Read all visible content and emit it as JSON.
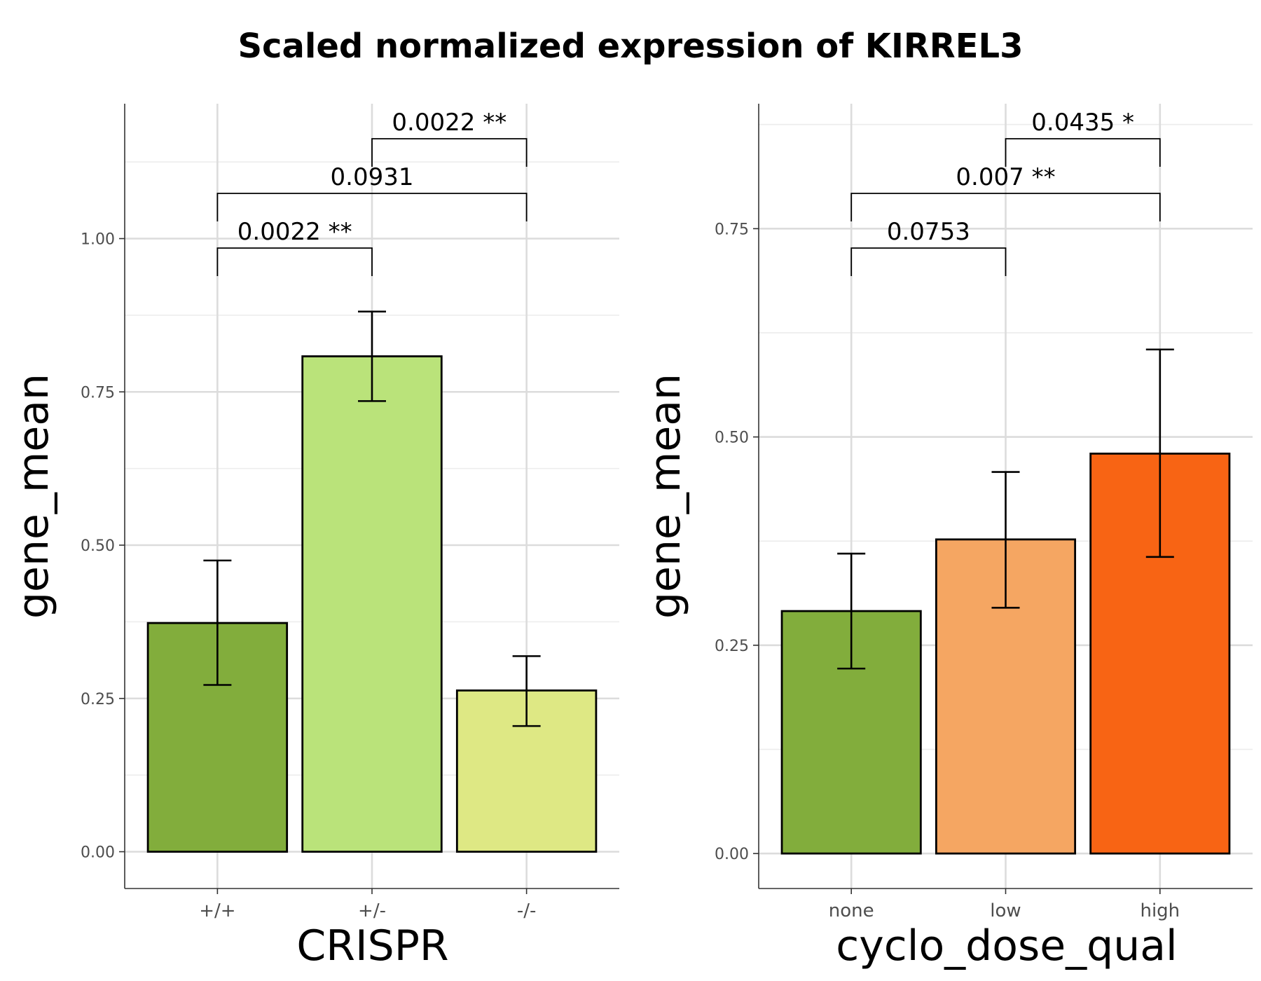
{
  "title": "Scaled normalized expression of KIRREL3",
  "chart_data": [
    {
      "type": "bar",
      "xlabel": "CRISPR",
      "ylabel": "gene_mean",
      "categories": [
        "+/+",
        "+/-",
        "-/-"
      ],
      "values": [
        0.373,
        0.808,
        0.263
      ],
      "error_low": [
        0.272,
        0.735,
        0.205
      ],
      "error_high": [
        0.475,
        0.881,
        0.319
      ],
      "colors": [
        "#82ad3c",
        "#bae37a",
        "#dee884"
      ],
      "ylim": [
        -0.06,
        1.22
      ],
      "yticks": [
        0.0,
        0.25,
        0.5,
        0.75,
        1.0
      ],
      "ytick_labels": [
        "0.00",
        "0.25",
        "0.50",
        "0.75",
        "1.00"
      ],
      "grid": true,
      "comparisons": [
        {
          "from": "+/+",
          "to": "+/-",
          "label": "0.0022 **"
        },
        {
          "from": "+/+",
          "to": "-/-",
          "label": "0.0931"
        },
        {
          "from": "+/-",
          "to": "-/-",
          "label": "0.0022 **"
        }
      ]
    },
    {
      "type": "bar",
      "xlabel": "cyclo_dose_qual",
      "ylabel": "gene_mean",
      "categories": [
        "none",
        "low",
        "high"
      ],
      "values": [
        0.291,
        0.377,
        0.48
      ],
      "error_low": [
        0.222,
        0.295,
        0.356
      ],
      "error_high": [
        0.36,
        0.458,
        0.605
      ],
      "colors": [
        "#82ad3c",
        "#f5a662",
        "#f86414"
      ],
      "ylim": [
        -0.042,
        0.9
      ],
      "yticks": [
        0.0,
        0.25,
        0.5,
        0.75
      ],
      "ytick_labels": [
        "0.00",
        "0.25",
        "0.50",
        "0.75"
      ],
      "grid": true,
      "comparisons": [
        {
          "from": "none",
          "to": "low",
          "label": "0.0753"
        },
        {
          "from": "none",
          "to": "high",
          "label": "0.007 **"
        },
        {
          "from": "low",
          "to": "high",
          "label": "0.0435 *"
        }
      ]
    }
  ]
}
